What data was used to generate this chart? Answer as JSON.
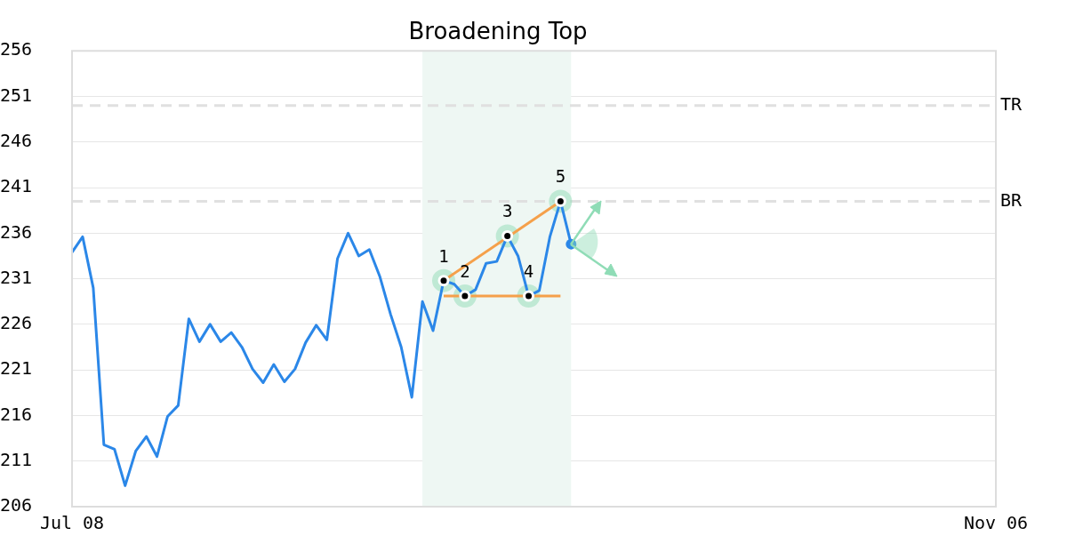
{
  "chart_data": {
    "type": "line",
    "title": "Broadening Top",
    "categories": [
      "Jul 08",
      null,
      null,
      null,
      null,
      null,
      null,
      null,
      null,
      null,
      null,
      null,
      null,
      null,
      null,
      null,
      null,
      null,
      null,
      null,
      null,
      null,
      null,
      null,
      null,
      null,
      null,
      null,
      null,
      null,
      null,
      null,
      null,
      null,
      null,
      null,
      null,
      null,
      null,
      null,
      null,
      null,
      null,
      null,
      null,
      null,
      null,
      null,
      null,
      null,
      null,
      null,
      null,
      null,
      null,
      null,
      null,
      null,
      null,
      null,
      null,
      null,
      null,
      null,
      null,
      null,
      null,
      null,
      null,
      null,
      null,
      null,
      null,
      null,
      null,
      null,
      null,
      null,
      null,
      null,
      null,
      null,
      null,
      null,
      null,
      null,
      null,
      "Nov 06"
    ],
    "series": [
      {
        "color": "#2b87e8",
        "values": [
          233.9,
          235.6,
          230.0,
          212.8,
          212.3,
          208.3,
          212.1,
          213.7,
          211.5,
          215.9,
          217.1,
          226.6,
          224.1,
          226.0,
          224.1,
          225.1,
          223.5,
          221.1,
          219.6,
          221.6,
          219.7,
          221.1,
          224.0,
          225.9,
          224.3,
          233.2,
          236.0,
          233.5,
          234.2,
          231.2,
          227.1,
          223.5,
          218.0,
          228.5,
          225.3,
          230.8,
          230.4,
          229.1,
          229.8,
          232.7,
          232.9,
          235.7,
          233.5,
          229.1,
          229.7,
          235.6,
          239.5,
          234.8,
          null,
          null,
          null,
          null,
          null,
          null,
          null,
          null,
          null,
          null,
          null,
          null,
          null,
          null,
          null,
          null,
          null,
          null,
          null,
          null,
          null,
          null,
          null,
          null,
          null,
          null,
          null,
          null,
          null,
          null,
          null,
          null,
          null,
          null,
          null,
          null,
          null,
          null,
          null,
          null
        ]
      },
      {
        "color": "#f5a04a",
        "values": [
          null,
          null,
          null,
          null,
          null,
          null,
          null,
          null,
          null,
          null,
          null,
          null,
          null,
          null,
          null,
          null,
          null,
          null,
          null,
          null,
          null,
          null,
          null,
          null,
          null,
          null,
          null,
          null,
          null,
          null,
          null,
          null,
          null,
          null,
          null,
          230.8,
          null,
          null,
          null,
          null,
          null,
          null,
          null,
          null,
          null,
          null,
          239.5,
          null,
          null,
          null,
          null,
          null,
          null,
          null,
          null,
          null,
          null,
          null,
          null,
          null,
          null,
          null,
          null,
          null,
          null,
          null,
          null,
          null,
          null,
          null,
          null,
          null,
          null,
          null,
          null,
          null,
          null,
          null,
          null,
          null,
          null,
          null,
          null,
          null,
          null,
          null,
          null,
          null
        ]
      },
      {
        "color": "#f5a04a",
        "values": [
          null,
          null,
          null,
          null,
          null,
          null,
          null,
          null,
          null,
          null,
          null,
          null,
          null,
          null,
          null,
          null,
          null,
          null,
          null,
          null,
          null,
          null,
          null,
          null,
          null,
          null,
          null,
          null,
          null,
          null,
          null,
          null,
          null,
          null,
          null,
          229.1,
          null,
          null,
          null,
          null,
          null,
          null,
          null,
          null,
          null,
          null,
          229.1,
          null,
          null,
          null,
          null,
          null,
          null,
          null,
          null,
          null,
          null,
          null,
          null,
          null,
          null,
          null,
          null,
          null,
          null,
          null,
          null,
          null,
          null,
          null,
          null,
          null,
          null,
          null,
          null,
          null,
          null,
          null,
          null,
          null,
          null,
          null,
          null,
          null,
          null,
          null,
          null,
          null
        ]
      },
      {
        "type": "scatter",
        "color": "#000000",
        "marker": "circle",
        "values": [
          null,
          null,
          null,
          null,
          null,
          null,
          null,
          null,
          null,
          null,
          null,
          null,
          null,
          null,
          null,
          null,
          null,
          null,
          null,
          null,
          null,
          null,
          null,
          null,
          null,
          null,
          null,
          null,
          null,
          null,
          null,
          null,
          null,
          null,
          null,
          230.8,
          null,
          229.1,
          null,
          null,
          null,
          235.7,
          null,
          229.1,
          null,
          null,
          239.5,
          null,
          null,
          null,
          null,
          null,
          null,
          null,
          null,
          null,
          null,
          null,
          null,
          null,
          null,
          null,
          null,
          null,
          null,
          null,
          null,
          null,
          null,
          null,
          null,
          null,
          null,
          null,
          null,
          null,
          null,
          null,
          null,
          null,
          null,
          null,
          null,
          null,
          null,
          null,
          null,
          null
        ]
      },
      {
        "type": "scatter",
        "color": "#2b87e8",
        "marker": "circle",
        "values": [
          null,
          null,
          null,
          null,
          null,
          null,
          null,
          null,
          null,
          null,
          null,
          null,
          null,
          null,
          null,
          null,
          null,
          null,
          null,
          null,
          null,
          null,
          null,
          null,
          null,
          null,
          null,
          null,
          null,
          null,
          null,
          null,
          null,
          null,
          null,
          null,
          null,
          null,
          null,
          null,
          null,
          null,
          null,
          null,
          null,
          null,
          null,
          234.8,
          null,
          null,
          null,
          null,
          null,
          null,
          null,
          null,
          null,
          null,
          null,
          null,
          null,
          null,
          null,
          null,
          null,
          null,
          null,
          null,
          null,
          null,
          null,
          null,
          null,
          null,
          null,
          null,
          null,
          null,
          null,
          null,
          null,
          null,
          null,
          null,
          null,
          null,
          null,
          null
        ]
      }
    ],
    "ylim": [
      206,
      256
    ],
    "yticks": [
      206,
      211,
      216,
      221,
      226,
      231,
      236,
      241,
      246,
      251,
      256
    ],
    "grid": "y",
    "ref_lines": [
      {
        "axis": "y",
        "value": 250,
        "label": "TR",
        "color": "#e0e0e0",
        "line_style": "dashed"
      },
      {
        "axis": "y",
        "value": 239.5,
        "label": "BR",
        "color": "#e0e0e0",
        "line_style": "dashed"
      }
    ],
    "annotations": [
      "1",
      "2",
      "3",
      "4",
      "5"
    ]
  }
}
